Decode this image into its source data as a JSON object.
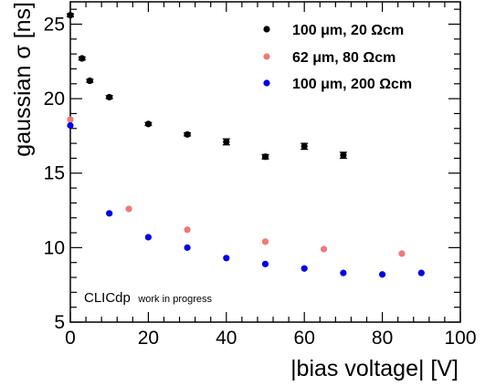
{
  "chart_data": {
    "type": "scatter",
    "xlabel": "|bias voltage| [V]",
    "ylabel": "gaussian σ [ns]",
    "xlim": [
      0,
      100
    ],
    "ylim": [
      5,
      26.5
    ],
    "x_ticks": [
      0,
      20,
      40,
      60,
      80,
      100
    ],
    "y_ticks": [
      5,
      10,
      15,
      20,
      25
    ],
    "grid": false,
    "legend_position": "top-right",
    "annotation": {
      "main": "CLICdp",
      "sub": "work in progress"
    },
    "series": [
      {
        "name": "100 μm, 20 Ωcm",
        "color": "#000000",
        "points": [
          {
            "x": 0,
            "y": 25.6,
            "err": 0.1
          },
          {
            "x": 3,
            "y": 22.7,
            "err": 0.1
          },
          {
            "x": 5,
            "y": 21.2,
            "err": 0.1
          },
          {
            "x": 10,
            "y": 20.1,
            "err": 0.1
          },
          {
            "x": 20,
            "y": 18.3,
            "err": 0.1
          },
          {
            "x": 30,
            "y": 17.6,
            "err": 0.1
          },
          {
            "x": 40,
            "y": 17.1,
            "err": 0.2
          },
          {
            "x": 50,
            "y": 16.1,
            "err": 0.15
          },
          {
            "x": 60,
            "y": 16.8,
            "err": 0.2
          },
          {
            "x": 70,
            "y": 16.2,
            "err": 0.2
          }
        ]
      },
      {
        "name": "62 μm, 80 Ωcm",
        "color": "#f07878",
        "points": [
          {
            "x": 0,
            "y": 18.6,
            "err": 0
          },
          {
            "x": 15,
            "y": 12.6,
            "err": 0
          },
          {
            "x": 30,
            "y": 11.2,
            "err": 0
          },
          {
            "x": 50,
            "y": 10.4,
            "err": 0
          },
          {
            "x": 65,
            "y": 9.9,
            "err": 0
          },
          {
            "x": 85,
            "y": 9.6,
            "err": 0
          }
        ]
      },
      {
        "name": "100 μm, 200 Ωcm",
        "color": "#0000e6",
        "points": [
          {
            "x": 0,
            "y": 18.2,
            "err": 0
          },
          {
            "x": 10,
            "y": 12.3,
            "err": 0
          },
          {
            "x": 20,
            "y": 10.7,
            "err": 0
          },
          {
            "x": 30,
            "y": 10.0,
            "err": 0
          },
          {
            "x": 40,
            "y": 9.3,
            "err": 0
          },
          {
            "x": 50,
            "y": 8.9,
            "err": 0
          },
          {
            "x": 60,
            "y": 8.6,
            "err": 0
          },
          {
            "x": 70,
            "y": 8.3,
            "err": 0
          },
          {
            "x": 80,
            "y": 8.2,
            "err": 0
          },
          {
            "x": 90,
            "y": 8.3,
            "err": 0
          }
        ]
      }
    ]
  }
}
